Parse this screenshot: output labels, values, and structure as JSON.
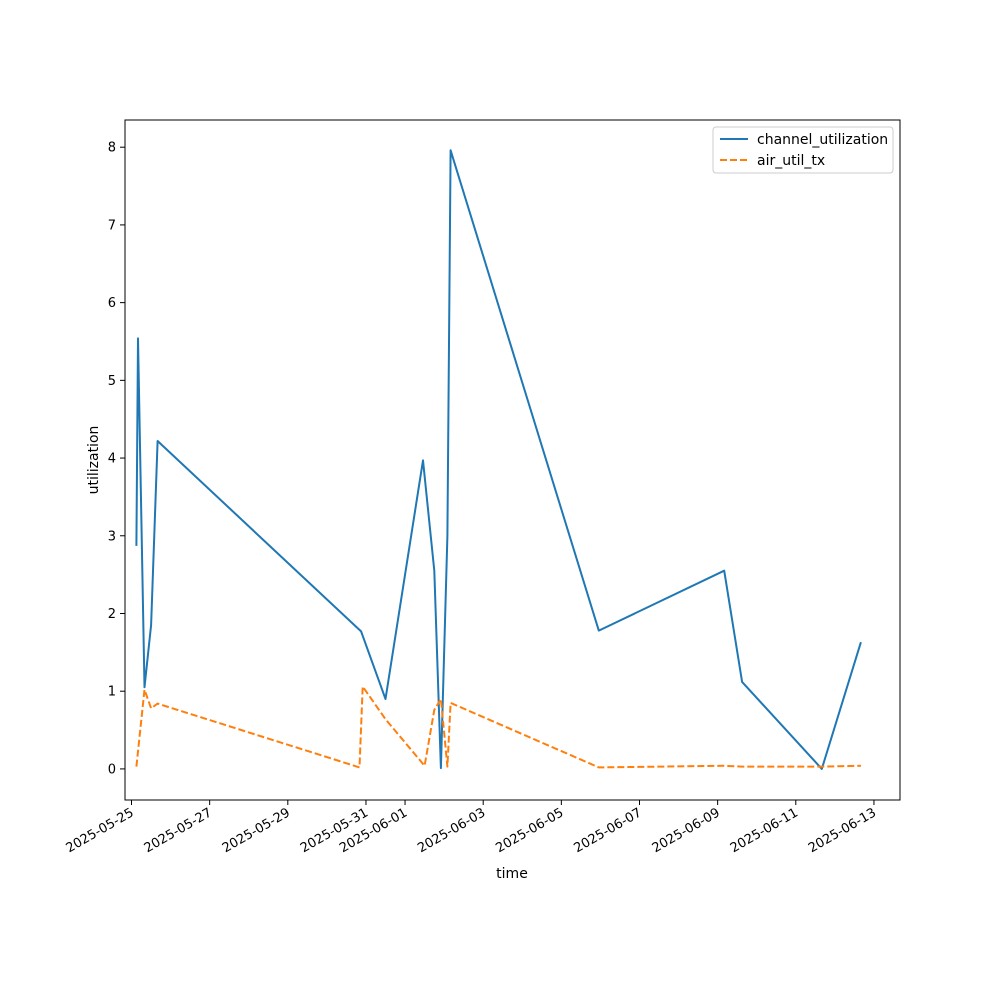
{
  "chart_data": {
    "type": "line",
    "xlabel": "time",
    "ylabel": "utilization",
    "x_type": "date",
    "xlim": [
      "2025-05-24T20:00",
      "2025-06-13T16:00"
    ],
    "ylim": [
      -0.4,
      8.35
    ],
    "xticks": [
      "2025-05-25",
      "2025-05-27",
      "2025-05-29",
      "2025-05-31",
      "2025-06-01",
      "2025-06-03",
      "2025-06-05",
      "2025-06-07",
      "2025-06-09",
      "2025-06-11",
      "2025-06-13"
    ],
    "yticks": [
      0,
      1,
      2,
      3,
      4,
      5,
      6,
      7,
      8
    ],
    "grid": false,
    "legend_position": "top-right",
    "series": [
      {
        "name": "channel_utilization",
        "color": "#1f77b4",
        "style": "solid",
        "points": [
          [
            "2025-05-25T03:00",
            2.87
          ],
          [
            "2025-05-25T04:00",
            5.54
          ],
          [
            "2025-05-25T08:00",
            1.05
          ],
          [
            "2025-05-25T12:00",
            1.85
          ],
          [
            "2025-05-25T16:00",
            4.22
          ],
          [
            "2025-05-30T21:00",
            1.77
          ],
          [
            "2025-05-31T12:00",
            0.9
          ],
          [
            "2025-06-01T11:00",
            3.97
          ],
          [
            "2025-06-01T18:00",
            2.55
          ],
          [
            "2025-06-01T22:00",
            0.01
          ],
          [
            "2025-06-02T02:00",
            3.0
          ],
          [
            "2025-06-02T04:00",
            7.96
          ],
          [
            "2025-06-05T23:00",
            1.78
          ],
          [
            "2025-06-09T04:00",
            2.55
          ],
          [
            "2025-06-09T15:00",
            1.12
          ],
          [
            "2025-06-11T16:00",
            0.0
          ],
          [
            "2025-06-12T16:00",
            1.63
          ]
        ]
      },
      {
        "name": "air_util_tx",
        "color": "#ff7f0e",
        "style": "dashed",
        "points": [
          [
            "2025-05-25T03:00",
            0.03
          ],
          [
            "2025-05-25T08:00",
            1.02
          ],
          [
            "2025-05-25T12:00",
            0.78
          ],
          [
            "2025-05-25T16:00",
            0.84
          ],
          [
            "2025-05-30T20:00",
            0.02
          ],
          [
            "2025-05-30T22:00",
            1.06
          ],
          [
            "2025-05-31T12:00",
            0.64
          ],
          [
            "2025-06-01T12:00",
            0.04
          ],
          [
            "2025-06-01T18:00",
            0.76
          ],
          [
            "2025-06-01T22:00",
            0.9
          ],
          [
            "2025-06-02T02:00",
            0.03
          ],
          [
            "2025-06-02T04:00",
            0.85
          ],
          [
            "2025-06-05T23:00",
            0.02
          ],
          [
            "2025-06-09T04:00",
            0.04
          ],
          [
            "2025-06-09T15:00",
            0.03
          ],
          [
            "2025-06-11T16:00",
            0.03
          ],
          [
            "2025-06-12T16:00",
            0.04
          ]
        ]
      }
    ]
  }
}
